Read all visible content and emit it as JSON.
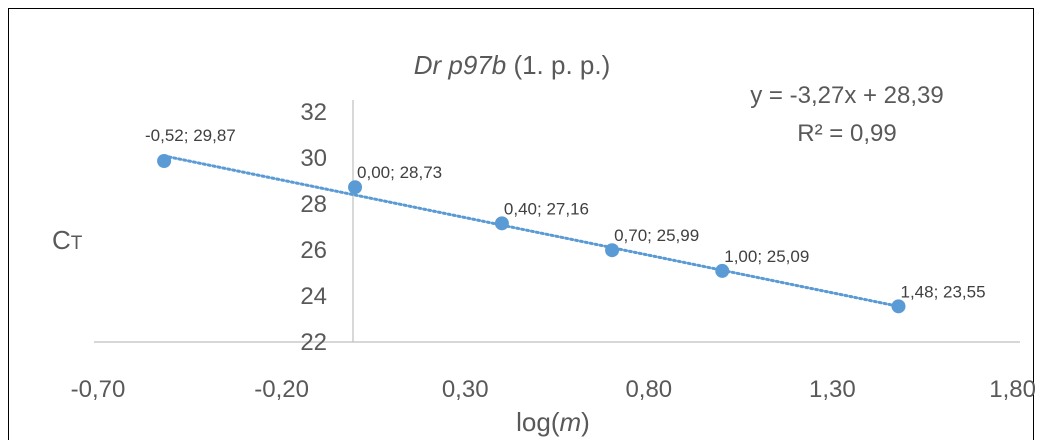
{
  "chart_data": {
    "type": "scatter",
    "title_italic": "Dr p97b",
    "title_rest": " (1. p. p.)",
    "xlabel_pre": "log(",
    "xlabel_var": "m",
    "xlabel_post": ")",
    "ylabel_main": "C",
    "ylabel_sub": "T",
    "xlim": [
      -0.7,
      1.8
    ],
    "ylim": [
      22,
      32
    ],
    "x_ticks": [
      -0.7,
      -0.2,
      0.3,
      0.8,
      1.3,
      1.8
    ],
    "x_tick_labels": [
      "-0,70",
      "-0,20",
      "0,30",
      "0,80",
      "1,30",
      "1,80"
    ],
    "y_ticks": [
      22,
      24,
      26,
      28,
      30,
      32
    ],
    "y_tick_labels": [
      "22",
      "24",
      "26",
      "28",
      "30",
      "32"
    ],
    "grid": false,
    "series": [
      {
        "color": "#5B9BD5",
        "x": [
          -0.52,
          0.0,
          0.4,
          0.7,
          1.0,
          1.48
        ],
        "y": [
          29.87,
          28.73,
          27.16,
          25.99,
          25.09,
          23.55
        ],
        "point_labels": [
          "-0,52; 29,87",
          "0,00; 28,73",
          "0,40; 27,16",
          "0,70; 25,99",
          "1,00; 25,09",
          "1,48; 23,55"
        ]
      }
    ],
    "trendline": {
      "slope": -3.27,
      "intercept": 28.39,
      "style": "dotted",
      "color": "#5B9BD5",
      "equation": "y = -3,27x + 28,39",
      "r_squared": "R² = 0,99"
    }
  }
}
